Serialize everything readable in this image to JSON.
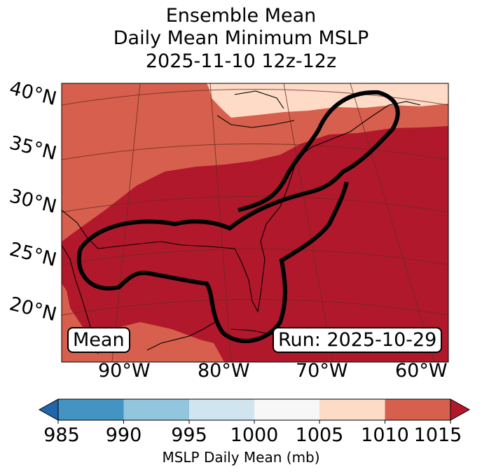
{
  "title": {
    "line1": "Ensemble Mean",
    "line2": "Daily Mean Minimum MSLP",
    "line3": "2025-11-10 12z-12z"
  },
  "map": {
    "lat_labels": [
      "40°N",
      "35°N",
      "30°N",
      "25°N",
      "20°N"
    ],
    "lon_labels": [
      "90°W",
      "80°W",
      "70°W",
      "60°W"
    ],
    "mean_label": "Mean",
    "run_label": "Run: 2025-10-29",
    "fill_colors": {
      "1005_1010": "#fddbc7",
      "1010_1015": "#d6604d",
      "above_1015": "#b2182b"
    },
    "contour_color": "#000000"
  },
  "colorbar": {
    "label": "MSLP Daily Mean (mb)",
    "ticks": [
      "985",
      "990",
      "995",
      "1000",
      "1005",
      "1010",
      "1015"
    ],
    "colors": [
      "#4393c3",
      "#92c5de",
      "#d1e5f0",
      "#f7f7f7",
      "#fddbc7",
      "#d6604d"
    ],
    "under_color": "#2166ac",
    "over_color": "#b2182b"
  }
}
